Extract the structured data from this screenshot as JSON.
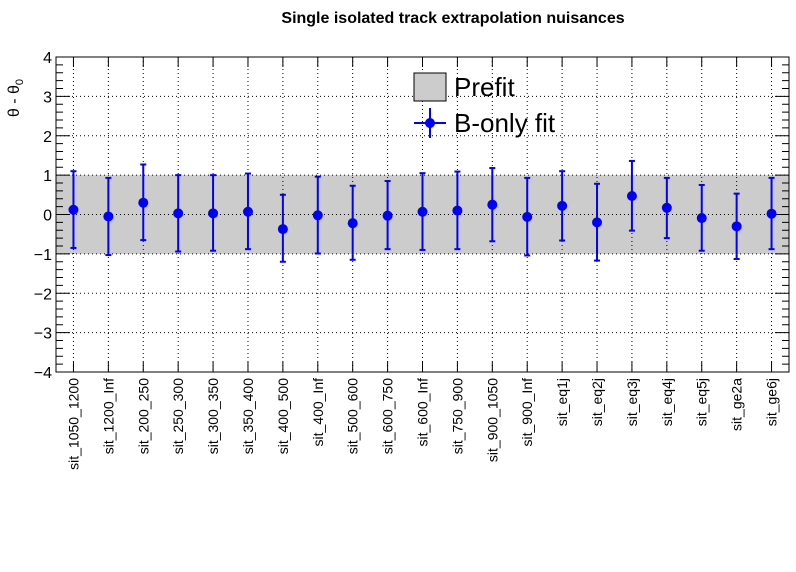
{
  "chart_data": {
    "type": "scatter",
    "title": "Single isolated track extrapolation nuisances",
    "ylabel": "θ - θ",
    "ylabel_subscript": "0",
    "ylim": [
      -4,
      4
    ],
    "yticks": [
      "4",
      "3",
      "2",
      "1",
      "0",
      "−1",
      "−2",
      "−3",
      "−4"
    ],
    "grid": true,
    "legend_position": "top-right",
    "prefit_band": [
      -1,
      1
    ],
    "prefit_color": "#cccccc",
    "series_color": "#0000ff",
    "legend": {
      "prefit": "Prefit",
      "fit": "B-only fit"
    },
    "categories": [
      "sit_1050_1200",
      "sit_1200_Inf",
      "sit_200_250",
      "sit_250_300",
      "sit_300_350",
      "sit_350_400",
      "sit_400_500",
      "sit_400_Inf",
      "sit_500_600",
      "sit_600_750",
      "sit_600_Inf",
      "sit_750_900",
      "sit_900_1050",
      "sit_900_Inf",
      "sit_eq1j",
      "sit_eq2j",
      "sit_eq3j",
      "sit_eq4j",
      "sit_eq5j",
      "sit_ge2a",
      "sit_ge6j"
    ],
    "series": [
      {
        "name": "B-only fit",
        "values": [
          0.12,
          -0.05,
          0.3,
          0.03,
          0.03,
          0.07,
          -0.37,
          -0.02,
          -0.22,
          -0.03,
          0.07,
          0.1,
          0.25,
          -0.06,
          0.22,
          -0.2,
          0.47,
          0.17,
          -0.09,
          -0.3,
          0.02
        ],
        "err_lo": [
          0.97,
          0.98,
          0.95,
          0.97,
          0.95,
          0.95,
          0.83,
          0.97,
          0.93,
          0.85,
          0.97,
          0.98,
          0.93,
          0.98,
          0.88,
          0.97,
          0.88,
          0.77,
          0.83,
          0.83,
          0.9
        ],
        "err_hi": [
          0.98,
          0.98,
          0.97,
          0.97,
          0.97,
          0.97,
          0.87,
          0.98,
          0.95,
          0.88,
          0.98,
          0.99,
          0.93,
          0.99,
          0.88,
          0.98,
          0.89,
          0.76,
          0.84,
          0.83,
          0.91
        ]
      }
    ]
  }
}
